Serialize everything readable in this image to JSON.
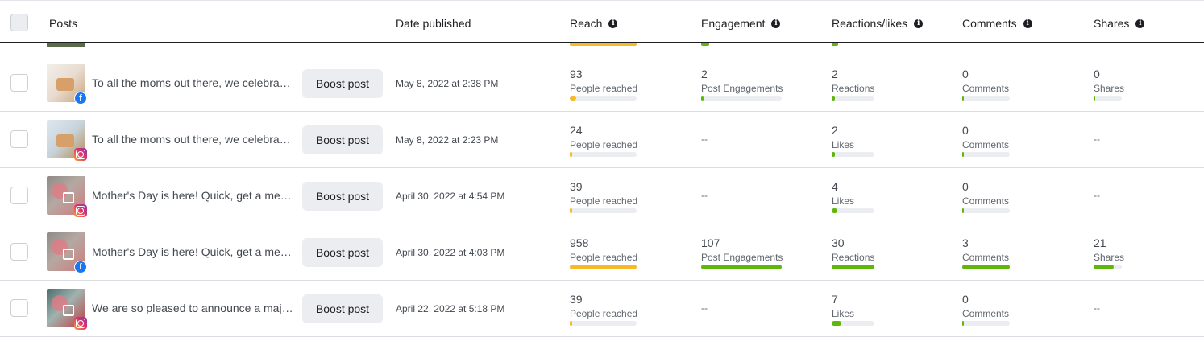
{
  "header": {
    "posts": "Posts",
    "date_published": "Date published",
    "reach": "Reach",
    "engagement": "Engagement",
    "reactions": "Reactions/likes",
    "comments": "Comments",
    "shares": "Shares"
  },
  "colors": {
    "reach": "#f7b928",
    "green": "#5fb709",
    "track": "#ebedf0"
  },
  "rows": [
    {
      "platform": "facebook",
      "title": "To all the moms out there, we celebrate you…",
      "boost": "Boost post",
      "date": "May 8, 2022 at 2:38 PM",
      "reach": {
        "value": "93",
        "label": "People reached",
        "level": 0.1
      },
      "engagement": {
        "value": "2",
        "label": "Post Engagements",
        "level": 0.02
      },
      "reactions": {
        "value": "2",
        "label": "Reactions",
        "level": 0.07
      },
      "comments": {
        "value": "0",
        "label": "Comments",
        "level": 0
      },
      "shares": {
        "value": "0",
        "label": "Shares",
        "level": 0
      }
    },
    {
      "platform": "instagram",
      "title": "To all the moms out there, we celebrate you…",
      "boost": "Boost post",
      "date": "May 8, 2022 at 2:23 PM",
      "reach": {
        "value": "24",
        "label": "People reached",
        "level": 0.03
      },
      "engagement": {
        "empty": "--"
      },
      "reactions": {
        "value": "2",
        "label": "Likes",
        "level": 0.07
      },
      "comments": {
        "value": "0",
        "label": "Comments",
        "level": 0
      },
      "shares": {
        "empty": "--"
      }
    },
    {
      "platform": "instagram",
      "title": "Mother's Day is here! Quick, get a membership…",
      "boost": "Boost post",
      "date": "April 30, 2022 at 4:54 PM",
      "reach": {
        "value": "39",
        "label": "People reached",
        "level": 0.04
      },
      "engagement": {
        "empty": "--"
      },
      "reactions": {
        "value": "4",
        "label": "Likes",
        "level": 0.13
      },
      "comments": {
        "value": "0",
        "label": "Comments",
        "level": 0
      },
      "shares": {
        "empty": "--"
      }
    },
    {
      "platform": "facebook",
      "title": "Mother's Day is here! Quick, get a membership…",
      "boost": "Boost post",
      "date": "April 30, 2022 at 4:03 PM",
      "reach": {
        "value": "958",
        "label": "People reached",
        "level": 1
      },
      "engagement": {
        "value": "107",
        "label": "Post Engagements",
        "level": 1
      },
      "reactions": {
        "value": "30",
        "label": "Reactions",
        "level": 1
      },
      "comments": {
        "value": "3",
        "label": "Comments",
        "level": 1
      },
      "shares": {
        "value": "21",
        "label": "Shares",
        "level": 0.7
      }
    },
    {
      "platform": "instagram",
      "title": "We are so pleased to announce a major update…",
      "boost": "Boost post",
      "date": "April 22, 2022 at 5:18 PM",
      "reach": {
        "value": "39",
        "label": "People reached",
        "level": 0.04
      },
      "engagement": {
        "empty": "--"
      },
      "reactions": {
        "value": "7",
        "label": "Likes",
        "level": 0.23
      },
      "comments": {
        "value": "0",
        "label": "Comments",
        "level": 0
      },
      "shares": {
        "empty": "--"
      }
    }
  ]
}
